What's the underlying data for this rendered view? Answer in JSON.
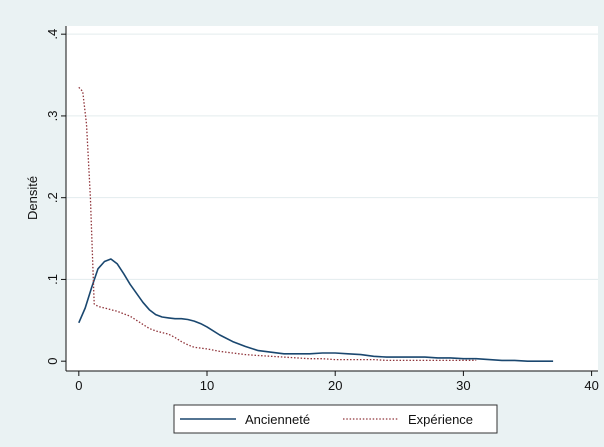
{
  "chart_data": {
    "type": "line",
    "title": "",
    "xlabel": "",
    "ylabel": "Densité",
    "xlim": [
      -1,
      40.5
    ],
    "ylim": [
      -0.012,
      0.41
    ],
    "x_ticks": [
      0,
      10,
      20,
      30,
      40
    ],
    "x_tick_labels": [
      "0",
      "10",
      "20",
      "30",
      "40"
    ],
    "y_ticks": [
      0,
      0.1,
      0.2,
      0.3,
      0.4
    ],
    "y_tick_labels": [
      "0",
      ".1",
      ".2",
      ".3",
      ".4"
    ],
    "grid": true,
    "legend_position": "bottom",
    "series": [
      {
        "name": "Ancienneté",
        "color": "#1a476f",
        "style": "solid",
        "x": [
          0,
          0.5,
          1,
          1.5,
          2,
          2.5,
          3,
          3.5,
          4,
          4.5,
          5,
          5.5,
          6,
          6.5,
          7,
          7.5,
          8,
          8.5,
          9,
          9.5,
          10,
          11,
          12,
          13,
          14,
          15,
          16,
          17,
          18,
          19,
          20,
          21,
          22,
          23,
          24,
          25,
          26,
          27,
          28,
          29,
          30,
          31,
          32,
          33,
          34,
          35,
          36,
          37
        ],
        "y": [
          0.047,
          0.065,
          0.09,
          0.113,
          0.122,
          0.125,
          0.119,
          0.107,
          0.094,
          0.083,
          0.072,
          0.063,
          0.057,
          0.054,
          0.053,
          0.052,
          0.052,
          0.051,
          0.049,
          0.046,
          0.042,
          0.032,
          0.024,
          0.018,
          0.013,
          0.011,
          0.009,
          0.009,
          0.009,
          0.01,
          0.01,
          0.009,
          0.008,
          0.006,
          0.005,
          0.005,
          0.005,
          0.005,
          0.004,
          0.004,
          0.003,
          0.003,
          0.002,
          0.001,
          0.001,
          0.0,
          0.0,
          0.0
        ]
      },
      {
        "name": "Expérience",
        "color": "#90353b",
        "style": "dotted",
        "x": [
          0,
          0.3,
          0.6,
          0.9,
          1.2,
          1.5,
          2,
          2.5,
          3,
          3.5,
          4,
          4.5,
          5,
          5.5,
          6,
          6.5,
          7,
          7.5,
          8,
          8.5,
          9,
          9.5,
          10,
          11,
          12,
          13,
          14,
          15,
          16,
          17,
          18,
          19,
          20,
          21,
          22,
          23,
          24,
          25,
          26,
          27,
          28,
          29,
          30,
          31
        ],
        "y": [
          0.335,
          0.33,
          0.29,
          0.2,
          0.07,
          0.067,
          0.065,
          0.063,
          0.061,
          0.058,
          0.055,
          0.05,
          0.045,
          0.04,
          0.037,
          0.035,
          0.033,
          0.029,
          0.024,
          0.02,
          0.017,
          0.016,
          0.015,
          0.012,
          0.01,
          0.008,
          0.007,
          0.006,
          0.005,
          0.004,
          0.003,
          0.003,
          0.002,
          0.002,
          0.002,
          0.002,
          0.001,
          0.001,
          0.001,
          0.001,
          0.001,
          0.001,
          0.001,
          0.001
        ]
      }
    ]
  }
}
